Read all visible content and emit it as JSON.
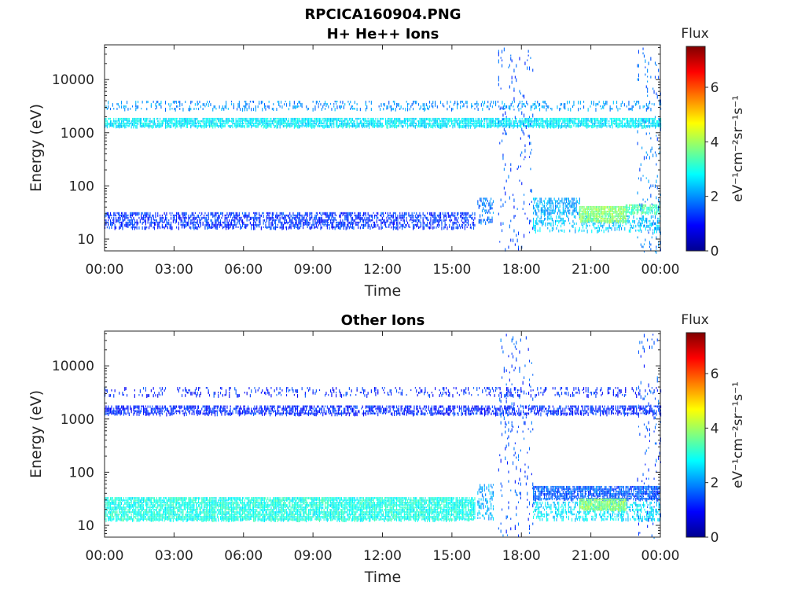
{
  "figure": {
    "filename_title": "RPCICA160904.PNG"
  },
  "chart_data": [
    {
      "type": "heatmap",
      "title": "H+ He++ Ions",
      "xlabel": "Time",
      "ylabel": "Energy (eV)",
      "yscale": "log",
      "ylim": [
        6,
        45000
      ],
      "xlim": [
        0,
        24
      ],
      "x_ticks": [
        "00:00",
        "03:00",
        "06:00",
        "09:00",
        "12:00",
        "15:00",
        "18:00",
        "21:00",
        "00:00"
      ],
      "y_ticks": [
        "10",
        "100",
        "1000",
        "10000"
      ],
      "colorbar": {
        "label": "Flux",
        "unit_label": "eV⁻¹cm⁻²sr⁻¹s⁻¹",
        "range": [
          0,
          7.5
        ],
        "ticks": [
          "0",
          "2",
          "4",
          "6"
        ],
        "colormap": "jet"
      },
      "bands": [
        {
          "t_start": 0.0,
          "t_end": 24.0,
          "e_low": 2800,
          "e_high": 4000,
          "level": 2.0,
          "density": 0.25
        },
        {
          "t_start": 0.0,
          "t_end": 24.0,
          "e_low": 1300,
          "e_high": 1900,
          "level": 2.7,
          "density": 0.85
        },
        {
          "t_start": 0.0,
          "t_end": 16.0,
          "e_low": 16,
          "e_high": 32,
          "level": 1.3,
          "density": 0.55
        },
        {
          "t_start": 16.1,
          "t_end": 16.8,
          "e_low": 20,
          "e_high": 60,
          "level": 1.8,
          "density": 0.4
        },
        {
          "t_start": 17.0,
          "t_end": 18.5,
          "e_low": 6,
          "e_high": 40000,
          "level": 1.5,
          "density": 0.05
        },
        {
          "t_start": 18.5,
          "t_end": 20.5,
          "e_low": 32,
          "e_high": 60,
          "level": 2.2,
          "density": 0.6
        },
        {
          "t_start": 18.5,
          "t_end": 24.0,
          "e_low": 14,
          "e_high": 28,
          "level": 2.4,
          "density": 0.35
        },
        {
          "t_start": 20.5,
          "t_end": 22.5,
          "e_low": 22,
          "e_high": 42,
          "level": 3.8,
          "density": 0.9
        },
        {
          "t_start": 22.5,
          "t_end": 24.0,
          "e_low": 30,
          "e_high": 45,
          "level": 3.4,
          "density": 0.8
        },
        {
          "t_start": 23.0,
          "t_end": 24.0,
          "e_low": 6,
          "e_high": 40000,
          "level": 1.8,
          "density": 0.06
        }
      ]
    },
    {
      "type": "heatmap",
      "title": "Other Ions",
      "xlabel": "Time",
      "ylabel": "Energy (eV)",
      "yscale": "log",
      "ylim": [
        6,
        45000
      ],
      "xlim": [
        0,
        24
      ],
      "x_ticks": [
        "00:00",
        "03:00",
        "06:00",
        "09:00",
        "12:00",
        "15:00",
        "18:00",
        "21:00",
        "00:00"
      ],
      "y_ticks": [
        "10",
        "100",
        "1000",
        "10000"
      ],
      "colorbar": {
        "label": "Flux",
        "unit_label": "eV⁻¹cm⁻²sr⁻¹s⁻¹",
        "range": [
          0,
          7.5
        ],
        "ticks": [
          "0",
          "2",
          "4",
          "6"
        ],
        "colormap": "jet"
      },
      "bands": [
        {
          "t_start": 0.0,
          "t_end": 24.0,
          "e_low": 2800,
          "e_high": 4000,
          "level": 1.2,
          "density": 0.2
        },
        {
          "t_start": 0.0,
          "t_end": 24.0,
          "e_low": 1300,
          "e_high": 1800,
          "level": 1.2,
          "density": 0.6
        },
        {
          "t_start": 0.0,
          "t_end": 16.0,
          "e_low": 13,
          "e_high": 34,
          "level": 3.0,
          "density": 0.85
        },
        {
          "t_start": 16.1,
          "t_end": 16.8,
          "e_low": 14,
          "e_high": 60,
          "level": 2.2,
          "density": 0.4
        },
        {
          "t_start": 17.0,
          "t_end": 18.5,
          "e_low": 6,
          "e_high": 40000,
          "level": 1.5,
          "density": 0.05
        },
        {
          "t_start": 18.5,
          "t_end": 24.0,
          "e_low": 30,
          "e_high": 55,
          "level": 1.6,
          "density": 0.8
        },
        {
          "t_start": 18.5,
          "t_end": 24.0,
          "e_low": 13,
          "e_high": 28,
          "level": 2.6,
          "density": 0.45
        },
        {
          "t_start": 20.5,
          "t_end": 22.5,
          "e_low": 20,
          "e_high": 32,
          "level": 3.8,
          "density": 0.9
        },
        {
          "t_start": 23.0,
          "t_end": 24.0,
          "e_low": 6,
          "e_high": 40000,
          "level": 1.5,
          "density": 0.06
        }
      ]
    }
  ]
}
